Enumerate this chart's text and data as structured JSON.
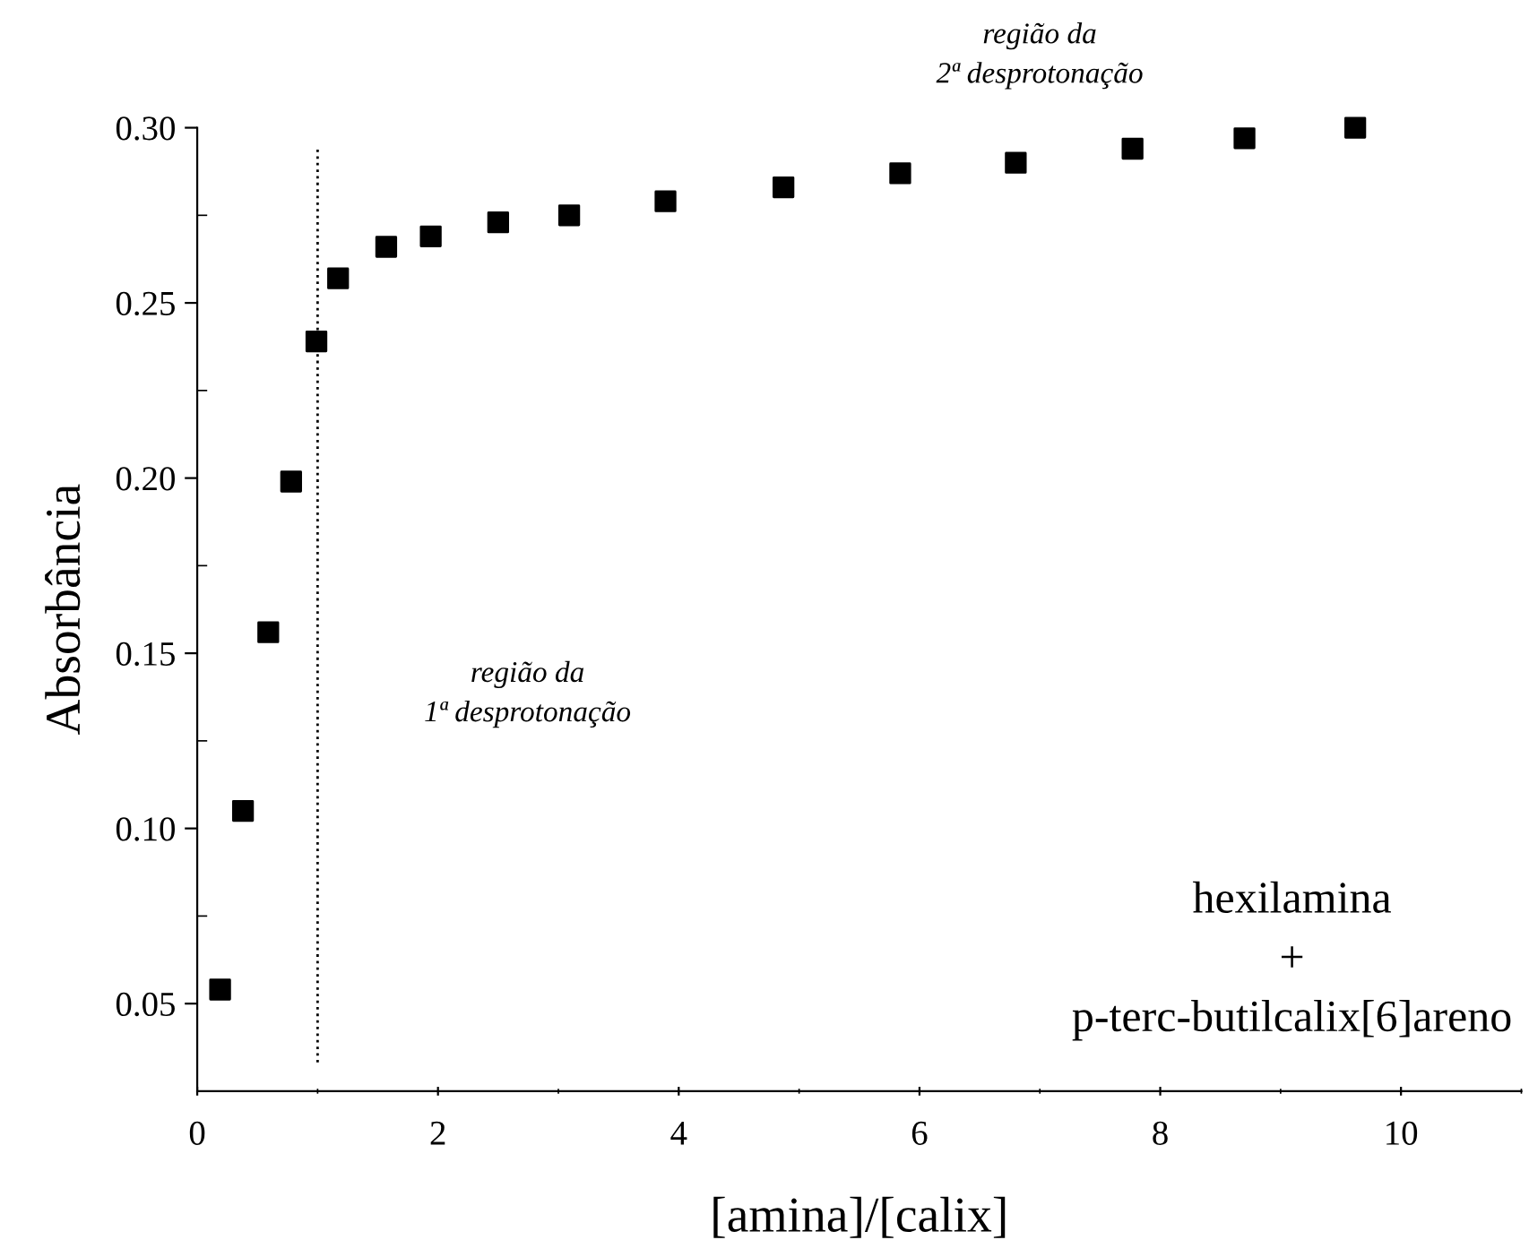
{
  "chart_data": {
    "type": "scatter",
    "xlabel": "[amina]/[calix]",
    "ylabel": "Absorbância",
    "x": [
      0.19,
      0.38,
      0.59,
      0.78,
      0.99,
      1.17,
      1.57,
      1.94,
      2.5,
      3.09,
      3.89,
      4.87,
      5.84,
      6.8,
      7.77,
      8.7,
      9.62
    ],
    "series": [
      {
        "color": "#000000",
        "values": [
          0.054,
          0.105,
          0.156,
          0.199,
          0.239,
          0.257,
          0.266,
          0.269,
          0.273,
          0.275,
          0.279,
          0.283,
          0.287,
          0.29,
          0.294,
          0.297,
          0.3
        ]
      }
    ],
    "marker": "square",
    "xlim": [
      0,
      11
    ],
    "xticks": [
      0,
      2,
      4,
      6,
      8,
      10
    ],
    "ylim": [
      0.025,
      0.3
    ],
    "yticks": [
      {
        "value": 0.05,
        "label": "0.05"
      },
      {
        "value": 0.1,
        "label": "0.10"
      },
      {
        "value": 0.15,
        "label": "0.15"
      },
      {
        "value": 0.2,
        "label": "0.20"
      },
      {
        "value": 0.25,
        "label": "0.25"
      },
      {
        "value": 0.3,
        "label": "0.30"
      }
    ],
    "ref_lines": [
      {
        "axis": "x",
        "value": 1.0,
        "line_style": "dotted",
        "color": "#000000"
      }
    ],
    "annotations": [
      "região da\n2ª desprotonação",
      "região da\n1ª desprotonação",
      "hexilamina\n+\np-terc-butilcalix[6]areno"
    ],
    "grid": false,
    "legend": false
  }
}
